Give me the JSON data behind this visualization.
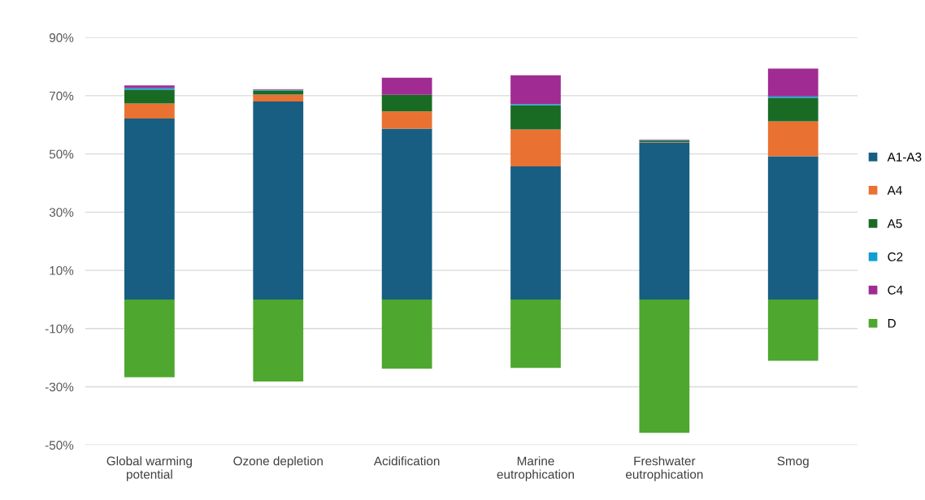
{
  "chart_data": {
    "type": "bar",
    "stacked": true,
    "categories": [
      "Global warming\npotential",
      "Ozone depletion",
      "Acidification",
      "Marine\neutrophication",
      "Freshwater\neutrophication",
      "Smog"
    ],
    "series": [
      {
        "name": "A1-A3",
        "color": "#175e82",
        "values": [
          62.2,
          68.0,
          58.7,
          45.7,
          53.9,
          49.2
        ]
      },
      {
        "name": "A4",
        "color": "#e97132",
        "values": [
          5.1,
          2.4,
          5.9,
          12.7,
          0.1,
          12.0
        ]
      },
      {
        "name": "A5",
        "color": "#196b24",
        "values": [
          4.8,
          1.4,
          5.7,
          8.3,
          0.6,
          8.1
        ]
      },
      {
        "name": "C2",
        "color": "#0f9ed5",
        "values": [
          0.5,
          0.2,
          null,
          0.4,
          0.1,
          0.5
        ]
      },
      {
        "name": "C4",
        "color": "#a02b93",
        "values": [
          0.9,
          0.2,
          5.9,
          9.9,
          0.2,
          9.5
        ]
      },
      {
        "name": "D",
        "color": "#4ea72e",
        "values": [
          -26.7,
          -28.2,
          -23.8,
          -23.5,
          -45.8,
          -21.1
        ]
      }
    ],
    "ylim": [
      -50,
      90
    ],
    "yticks": [
      {
        "value": -50,
        "label": "-50%"
      },
      {
        "value": -30,
        "label": "-30%"
      },
      {
        "value": -10,
        "label": "-10%"
      },
      {
        "value": 10,
        "label": "10%"
      },
      {
        "value": 30,
        "label": "30%"
      },
      {
        "value": 50,
        "label": "50%"
      },
      {
        "value": 70,
        "label": "70%"
      },
      {
        "value": 90,
        "label": "90%"
      }
    ],
    "grid": "y",
    "legend": "right"
  }
}
